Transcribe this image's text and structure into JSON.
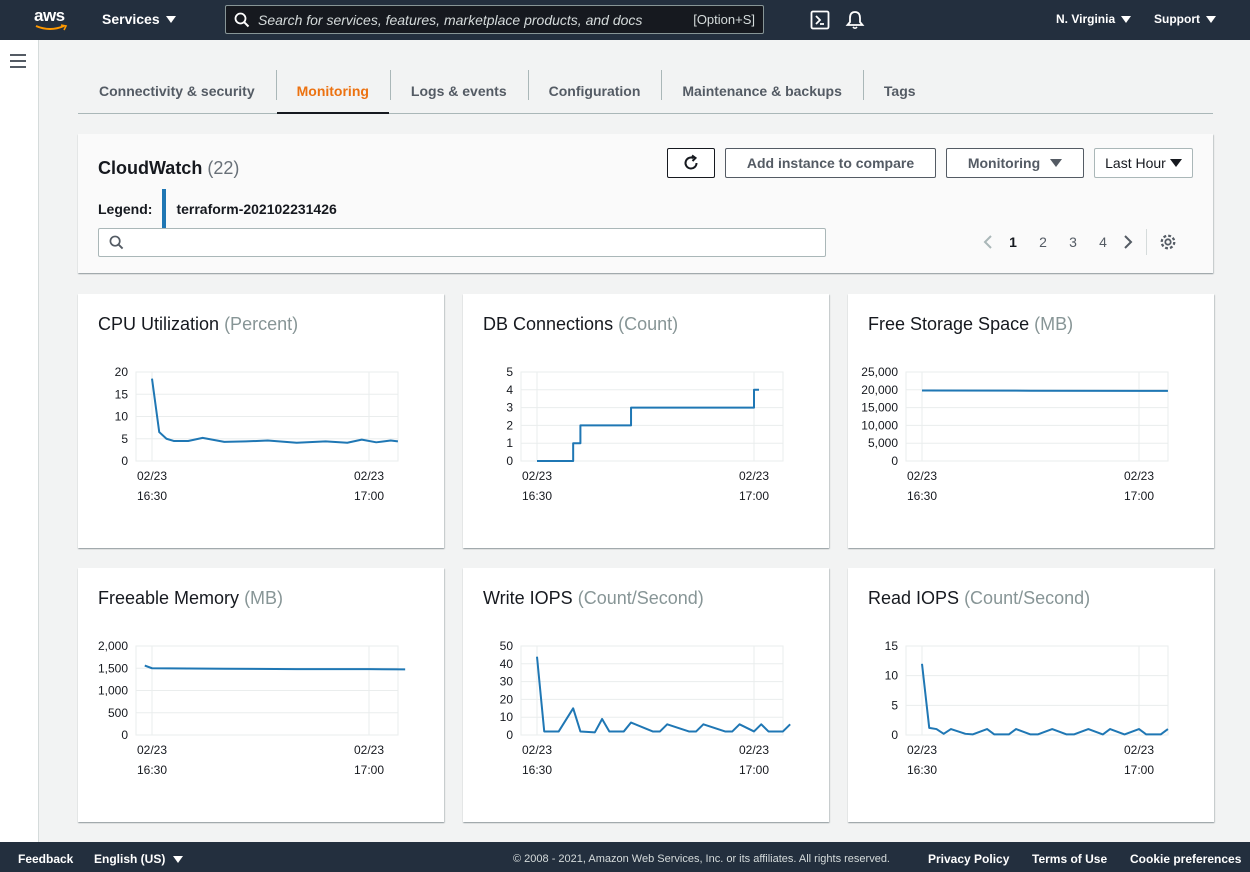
{
  "topnav": {
    "logo_text": "aws",
    "services_label": "Services",
    "search_placeholder": "Search for services, features, marketplace products, and docs",
    "search_shortcut": "[Option+S]",
    "region": "N. Virginia",
    "support": "Support",
    "icons": [
      "cloudshell-icon",
      "bell-icon"
    ]
  },
  "tabs": [
    {
      "label": "Connectivity & security",
      "active": false
    },
    {
      "label": "Monitoring",
      "active": true
    },
    {
      "label": "Logs & events",
      "active": false
    },
    {
      "label": "Configuration",
      "active": false
    },
    {
      "label": "Maintenance & backups",
      "active": false
    },
    {
      "label": "Tags",
      "active": false
    }
  ],
  "cloudwatch": {
    "title": "CloudWatch",
    "count": "(22)",
    "legend_label": "Legend:",
    "legend_item": "terraform-202102231426",
    "legend_color": "#1f77b4",
    "refresh_icon": "refresh-icon",
    "add_compare_label": "Add instance to compare",
    "monitoring_label": "Monitoring",
    "time_range": "Last Hour",
    "search_value": "",
    "pages": [
      "1",
      "2",
      "3",
      "4"
    ],
    "current_page": "1"
  },
  "chart_data": [
    {
      "type": "line",
      "title": "CPU Utilization",
      "unit": "(Percent)",
      "ylim": [
        0,
        20
      ],
      "yticks": [
        "20",
        "15",
        "10",
        "5",
        "0"
      ],
      "xticks": [
        [
          "02/23",
          "16:30"
        ],
        [
          "02/23",
          "17:00"
        ]
      ],
      "x": [
        "16:30",
        "16:31",
        "16:32",
        "16:33",
        "16:35",
        "16:37",
        "16:40",
        "16:43",
        "16:46",
        "16:50",
        "16:54",
        "16:57",
        "16:59",
        "17:01",
        "17:03",
        "17:04"
      ],
      "series": [
        {
          "values": [
            18.5,
            6.5,
            5,
            4.5,
            4.5,
            5.2,
            4.3,
            4.4,
            4.6,
            4.1,
            4.4,
            4.1,
            4.8,
            4.2,
            4.6,
            4.4
          ]
        }
      ],
      "grid": true
    },
    {
      "type": "line",
      "title": "DB Connections",
      "unit": "(Count)",
      "ylim": [
        0,
        5
      ],
      "yticks": [
        "5",
        "4",
        "3",
        "2",
        "1",
        "0"
      ],
      "xticks": [
        [
          "02/23",
          "16:30"
        ],
        [
          "02/23",
          "17:00"
        ]
      ],
      "x": [
        "16:30",
        "16:35",
        "16:36",
        "16:38",
        "16:43",
        "16:59",
        "17:00"
      ],
      "series": [
        {
          "values": [
            0,
            1,
            2,
            2,
            3,
            3,
            4
          ]
        }
      ],
      "grid": true
    },
    {
      "type": "line",
      "title": "Free Storage Space",
      "unit": "(MB)",
      "ylim": [
        0,
        25000
      ],
      "yticks": [
        "25,000",
        "20,000",
        "15,000",
        "10,000",
        "5,000",
        "0"
      ],
      "xticks": [
        [
          "02/23",
          "16:30"
        ],
        [
          "02/23",
          "17:00"
        ]
      ],
      "x": [
        "16:30",
        "16:45",
        "17:00",
        "17:04"
      ],
      "series": [
        {
          "values": [
            19800,
            19750,
            19700,
            19700
          ]
        }
      ],
      "grid": true
    },
    {
      "type": "line",
      "title": "Freeable Memory",
      "unit": "(MB)",
      "ylim": [
        0,
        2000
      ],
      "yticks": [
        "2,000",
        "1,500",
        "1,000",
        "500",
        "0"
      ],
      "xticks": [
        [
          "02/23",
          "16:30"
        ],
        [
          "02/23",
          "17:00"
        ]
      ],
      "x": [
        "16:29",
        "16:30",
        "16:40",
        "16:50",
        "17:00",
        "17:05"
      ],
      "series": [
        {
          "values": [
            1560,
            1500,
            1490,
            1480,
            1480,
            1475
          ]
        }
      ],
      "grid": true
    },
    {
      "type": "line",
      "title": "Write IOPS",
      "unit": "(Count/Second)",
      "ylim": [
        0,
        50
      ],
      "yticks": [
        "50",
        "40",
        "30",
        "20",
        "10",
        "0"
      ],
      "xticks": [
        [
          "02/23",
          "16:30"
        ],
        [
          "02/23",
          "17:00"
        ]
      ],
      "x": [
        "16:30",
        "16:31",
        "16:33",
        "16:35",
        "16:36",
        "16:38",
        "16:39",
        "16:40",
        "16:42",
        "16:43",
        "16:46",
        "16:47",
        "16:48",
        "16:51",
        "16:52",
        "16:53",
        "16:56",
        "16:57",
        "16:58",
        "17:00",
        "17:01",
        "17:02",
        "17:04",
        "17:05"
      ],
      "series": [
        {
          "values": [
            44,
            2,
            2,
            15,
            2,
            1.5,
            9,
            2,
            2,
            7,
            2,
            2,
            6,
            2,
            2,
            6,
            2,
            2,
            6,
            2,
            6,
            2,
            2,
            6
          ]
        }
      ],
      "grid": true
    },
    {
      "type": "line",
      "title": "Read IOPS",
      "unit": "(Count/Second)",
      "ylim": [
        0,
        15
      ],
      "yticks": [
        "15",
        "10",
        "5",
        "0"
      ],
      "xticks": [
        [
          "02/23",
          "16:30"
        ],
        [
          "02/23",
          "17:00"
        ]
      ],
      "x": [
        "16:30",
        "16:31",
        "16:32",
        "16:33",
        "16:34",
        "16:36",
        "16:37",
        "16:39",
        "16:40",
        "16:42",
        "16:43",
        "16:45",
        "16:46",
        "16:48",
        "16:50",
        "16:51",
        "16:53",
        "16:55",
        "16:56",
        "16:58",
        "17:00",
        "17:01",
        "17:03",
        "17:04"
      ],
      "series": [
        {
          "values": [
            12,
            1.2,
            1,
            0.2,
            1,
            0.2,
            0.1,
            1,
            0.1,
            0.1,
            1,
            0.1,
            0.1,
            1,
            0.1,
            0.1,
            1,
            0.1,
            1,
            0.1,
            1,
            0.1,
            0.1,
            1
          ]
        }
      ],
      "grid": true
    }
  ],
  "footer": {
    "feedback": "Feedback",
    "language": "English (US)",
    "copyright": "© 2008 - 2021, Amazon Web Services, Inc. or its affiliates. All rights reserved.",
    "privacy": "Privacy Policy",
    "terms": "Terms of Use",
    "cookies": "Cookie preferences"
  }
}
